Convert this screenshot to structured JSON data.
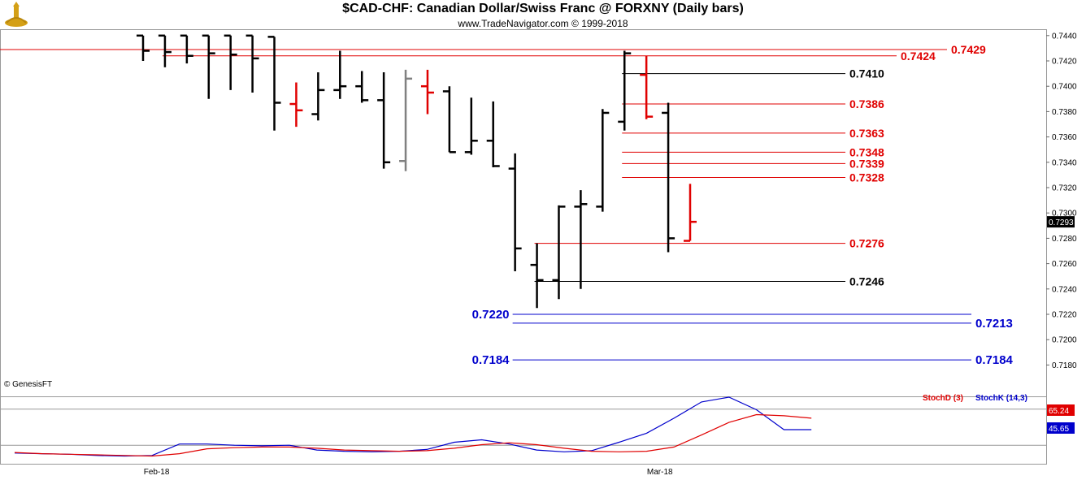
{
  "header": {
    "title": "$CAD-CHF:  Canadian Dollar/Swiss Franc @ FORXNY  (Daily bars)",
    "subtitle": "www.TradeNavigator.com © 1999-2018",
    "credit": "© GenesisFT"
  },
  "colors": {
    "bar_black": "#000000",
    "bar_red": "#e00000",
    "bar_gray": "#808080",
    "level_red": "#e00000",
    "level_black": "#000000",
    "level_blue": "#0000cc",
    "stochd": "#e00000",
    "stochk": "#0000cc",
    "last_price_bg": "#000000"
  },
  "chart_data": {
    "type": "ohlc",
    "ylim": [
      0.717,
      0.7445
    ],
    "y_ticks": [
      "0.7440",
      "0.7420",
      "0.7400",
      "0.7380",
      "0.7360",
      "0.7340",
      "0.7320",
      "0.7300",
      "0.7280",
      "0.7260",
      "0.7240",
      "0.7220",
      "0.7200",
      "0.7180"
    ],
    "x_labels": [
      {
        "label": "Feb-18",
        "index": 3
      },
      {
        "label": "Mar-18",
        "index": 26
      }
    ],
    "last_price": "0.7293",
    "bars": [
      {
        "o": 0.744,
        "h": 0.744,
        "l": 0.742,
        "c": 0.7428,
        "color": "black"
      },
      {
        "o": 0.744,
        "h": 0.744,
        "l": 0.7415,
        "c": 0.7427,
        "color": "black"
      },
      {
        "o": 0.744,
        "h": 0.744,
        "l": 0.7418,
        "c": 0.7424,
        "color": "black"
      },
      {
        "o": 0.744,
        "h": 0.744,
        "l": 0.739,
        "c": 0.7426,
        "color": "black"
      },
      {
        "o": 0.744,
        "h": 0.744,
        "l": 0.7397,
        "c": 0.7425,
        "color": "black"
      },
      {
        "o": 0.744,
        "h": 0.744,
        "l": 0.7395,
        "c": 0.7422,
        "color": "black"
      },
      {
        "o": 0.7439,
        "h": 0.7439,
        "l": 0.7365,
        "c": 0.7387,
        "color": "black"
      },
      {
        "o": 0.7386,
        "h": 0.7403,
        "l": 0.7368,
        "c": 0.7381,
        "color": "red"
      },
      {
        "o": 0.7378,
        "h": 0.7411,
        "l": 0.7373,
        "c": 0.7397,
        "color": "black"
      },
      {
        "o": 0.7397,
        "h": 0.7428,
        "l": 0.739,
        "c": 0.74,
        "color": "black"
      },
      {
        "o": 0.74,
        "h": 0.7412,
        "l": 0.7387,
        "c": 0.7389,
        "color": "black"
      },
      {
        "o": 0.7389,
        "h": 0.7411,
        "l": 0.7335,
        "c": 0.734,
        "color": "black"
      },
      {
        "o": 0.7341,
        "h": 0.7413,
        "l": 0.7333,
        "c": 0.7406,
        "color": "gray"
      },
      {
        "o": 0.74,
        "h": 0.7413,
        "l": 0.7378,
        "c": 0.7395,
        "color": "red"
      },
      {
        "o": 0.7396,
        "h": 0.74,
        "l": 0.7348,
        "c": 0.7348,
        "color": "black"
      },
      {
        "o": 0.7348,
        "h": 0.7391,
        "l": 0.7346,
        "c": 0.7357,
        "color": "black"
      },
      {
        "o": 0.7357,
        "h": 0.7388,
        "l": 0.7336,
        "c": 0.7337,
        "color": "black"
      },
      {
        "o": 0.7335,
        "h": 0.7347,
        "l": 0.7254,
        "c": 0.7272,
        "color": "black"
      },
      {
        "o": 0.7259,
        "h": 0.7276,
        "l": 0.7225,
        "c": 0.7247,
        "color": "black"
      },
      {
        "o": 0.7247,
        "h": 0.7306,
        "l": 0.7232,
        "c": 0.7305,
        "color": "black"
      },
      {
        "o": 0.7305,
        "h": 0.7318,
        "l": 0.724,
        "c": 0.7307,
        "color": "black"
      },
      {
        "o": 0.7305,
        "h": 0.7382,
        "l": 0.7301,
        "c": 0.7379,
        "color": "black"
      },
      {
        "o": 0.7372,
        "h": 0.7428,
        "l": 0.7365,
        "c": 0.7426,
        "color": "black"
      },
      {
        "o": 0.7409,
        "h": 0.7424,
        "l": 0.7374,
        "c": 0.7376,
        "color": "red"
      },
      {
        "o": 0.7379,
        "h": 0.7387,
        "l": 0.7269,
        "c": 0.728,
        "color": "black"
      },
      {
        "o": 0.7278,
        "h": 0.7323,
        "l": 0.7278,
        "c": 0.7293,
        "color": "red"
      }
    ],
    "levels": [
      {
        "value": 0.7429,
        "label": "0.7429",
        "color": "red",
        "from": -1,
        "side": "right"
      },
      {
        "value": 0.7424,
        "label": "0.7424",
        "color": "red",
        "from": 1,
        "side": "right"
      },
      {
        "value": 0.741,
        "label": "0.7410",
        "color": "black",
        "from": 22,
        "side": "right"
      },
      {
        "value": 0.7386,
        "label": "0.7386",
        "color": "red",
        "from": 22,
        "side": "right"
      },
      {
        "value": 0.7363,
        "label": "0.7363",
        "color": "red",
        "from": 22,
        "side": "right"
      },
      {
        "value": 0.7348,
        "label": "0.7348",
        "color": "red",
        "from": 22,
        "side": "right"
      },
      {
        "value": 0.7339,
        "label": "0.7339",
        "color": "red",
        "from": 22,
        "side": "right"
      },
      {
        "value": 0.7328,
        "label": "0.7328",
        "color": "red",
        "from": 22,
        "side": "right"
      },
      {
        "value": 0.7276,
        "label": "0.7276",
        "color": "red",
        "from": 18,
        "side": "right"
      },
      {
        "value": 0.7246,
        "label": "0.7246",
        "color": "black",
        "from": 18,
        "side": "right"
      },
      {
        "value": 0.722,
        "label": "0.7220",
        "color": "blue",
        "from": 17,
        "side": "left"
      },
      {
        "value": 0.7213,
        "label": "0.7213",
        "color": "blue",
        "from": 17,
        "side": "right"
      },
      {
        "value": 0.7184,
        "label": "0.7184",
        "color": "blue",
        "from": 17,
        "side": "both"
      }
    ],
    "stochastic": {
      "legend_d": "StochD (3)",
      "legend_k": "StochK (14,3)",
      "value_d": "65.24",
      "value_k": "45.65",
      "stoch_d": [
        8,
        6,
        5,
        4,
        3,
        2,
        6,
        14,
        16,
        17,
        17,
        15,
        12,
        11,
        10,
        11,
        15,
        21,
        24,
        21,
        15,
        10,
        9,
        10,
        17,
        37,
        58,
        71,
        69,
        65
      ],
      "stoch_k": [
        7,
        6,
        5,
        3,
        2,
        3,
        22,
        22,
        20,
        19,
        20,
        12,
        10,
        9,
        10,
        13,
        25,
        29,
        22,
        12,
        9,
        11,
        25,
        40,
        65,
        92,
        100,
        79,
        46,
        46
      ]
    }
  }
}
